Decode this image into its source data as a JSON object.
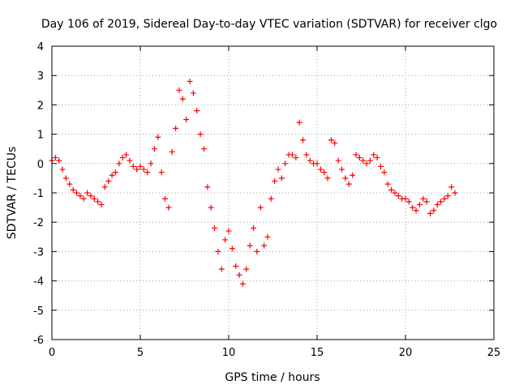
{
  "chart_data": {
    "type": "scatter",
    "title": "Day 106 of 2019, Sidereal Day-to-day VTEC variation (SDTVAR) for receiver clgo",
    "xlabel": "GPS time / hours",
    "ylabel": "SDTVAR / TECUs",
    "xlim": [
      0,
      25
    ],
    "ylim": [
      -6,
      4
    ],
    "xticks": [
      0,
      5,
      10,
      15,
      20,
      25
    ],
    "yticks": [
      -6,
      -5,
      -4,
      -3,
      -2,
      -1,
      0,
      1,
      2,
      3,
      4
    ],
    "grid": true,
    "marker": "+",
    "series": [
      {
        "name": "SDTVAR",
        "color": "#ff0000",
        "x": [
          0.0,
          0.2,
          0.4,
          0.6,
          0.8,
          1.0,
          1.2,
          1.4,
          1.6,
          1.8,
          2.0,
          2.2,
          2.4,
          2.6,
          2.8,
          3.0,
          3.2,
          3.4,
          3.6,
          3.8,
          4.0,
          4.2,
          4.4,
          4.6,
          4.8,
          5.0,
          5.2,
          5.4,
          5.6,
          5.8,
          6.0,
          6.2,
          6.4,
          6.6,
          6.8,
          7.0,
          7.2,
          7.4,
          7.6,
          7.8,
          8.0,
          8.2,
          8.4,
          8.6,
          8.8,
          9.0,
          9.2,
          9.4,
          9.6,
          9.8,
          10.0,
          10.2,
          10.4,
          10.6,
          10.8,
          11.0,
          11.2,
          11.4,
          11.6,
          11.8,
          12.0,
          12.2,
          12.4,
          12.6,
          12.8,
          13.0,
          13.2,
          13.4,
          13.6,
          13.8,
          14.0,
          14.2,
          14.4,
          14.6,
          14.8,
          15.0,
          15.2,
          15.4,
          15.6,
          15.8,
          16.0,
          16.2,
          16.4,
          16.6,
          16.8,
          17.0,
          17.2,
          17.4,
          17.6,
          17.8,
          18.0,
          18.2,
          18.4,
          18.6,
          18.8,
          19.0,
          19.2,
          19.4,
          19.6,
          19.8,
          20.0,
          20.2,
          20.4,
          20.6,
          20.8,
          21.0,
          21.2,
          21.4,
          21.6,
          21.8,
          22.0,
          22.2,
          22.4,
          22.6,
          22.8
        ],
        "y": [
          0.1,
          0.2,
          0.1,
          -0.2,
          -0.5,
          -0.7,
          -0.9,
          -1.0,
          -1.1,
          -1.2,
          -1.0,
          -1.1,
          -1.2,
          -1.3,
          -1.4,
          -0.8,
          -0.6,
          -0.4,
          -0.3,
          0.0,
          0.2,
          0.3,
          0.1,
          -0.1,
          -0.2,
          -0.1,
          -0.2,
          -0.3,
          0.0,
          0.5,
          0.9,
          -0.3,
          -1.2,
          -1.5,
          0.4,
          1.2,
          2.5,
          2.2,
          1.5,
          2.8,
          2.4,
          1.8,
          1.0,
          0.5,
          -0.8,
          -1.5,
          -2.2,
          -3.0,
          -3.6,
          -2.6,
          -2.3,
          -2.9,
          -3.5,
          -3.8,
          -4.1,
          -3.6,
          -2.8,
          -2.2,
          -3.0,
          -1.5,
          -2.8,
          -2.5,
          -1.2,
          -0.6,
          -0.2,
          -0.5,
          0.0,
          0.3,
          0.3,
          0.2,
          1.4,
          0.8,
          0.3,
          0.1,
          0.0,
          0.0,
          -0.2,
          -0.3,
          -0.5,
          0.8,
          0.7,
          0.1,
          -0.2,
          -0.5,
          -0.7,
          -0.4,
          0.3,
          0.2,
          0.1,
          0.0,
          0.1,
          0.3,
          0.2,
          -0.1,
          -0.3,
          -0.7,
          -0.9,
          -1.0,
          -1.1,
          -1.2,
          -1.2,
          -1.3,
          -1.5,
          -1.6,
          -1.4,
          -1.2,
          -1.3,
          -1.7,
          -1.6,
          -1.4,
          -1.3,
          -1.2,
          -1.1,
          -0.8,
          -1.0
        ]
      }
    ]
  }
}
